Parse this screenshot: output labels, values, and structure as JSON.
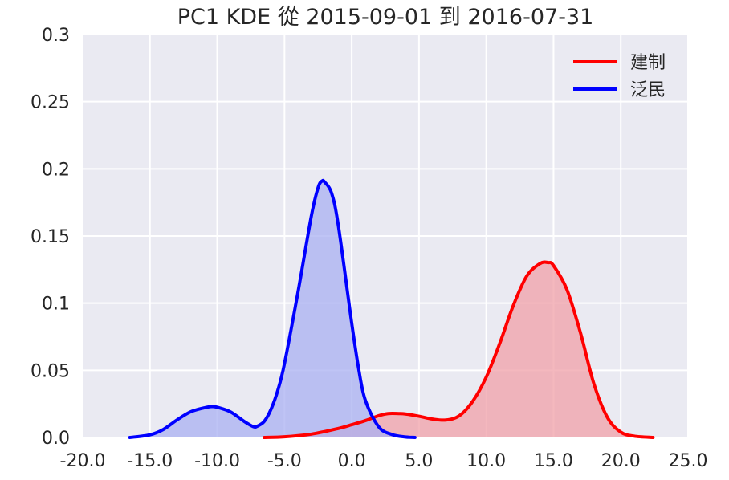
{
  "chart_data": {
    "type": "area",
    "title": "PC1 KDE 從 2015-09-01 到 2016-07-31",
    "xlabel": "",
    "ylabel": "",
    "xlim": [
      -20.0,
      25.0
    ],
    "ylim": [
      0.0,
      0.3
    ],
    "x_ticks": [
      "-20.0",
      "-15.0",
      "-10.0",
      "-5.0",
      "0.0",
      "5.0",
      "10.0",
      "15.0",
      "20.0",
      "25.0"
    ],
    "y_ticks": [
      "0.0",
      "0.05",
      "0.1",
      "0.15",
      "0.2",
      "0.25",
      "0.3"
    ],
    "grid": true,
    "legend_position": "top-right",
    "series": [
      {
        "name": "建制",
        "color": "#ff0000",
        "fill": "#f0a0a8",
        "x": [
          -6.5,
          -5.0,
          -3.0,
          -1.0,
          0.0,
          1.0,
          2.0,
          2.7,
          3.5,
          4.0,
          5.0,
          6.0,
          7.0,
          8.0,
          9.0,
          10.0,
          11.0,
          12.0,
          13.0,
          14.0,
          14.6,
          15.0,
          16.0,
          17.0,
          18.0,
          19.0,
          20.0,
          21.0,
          22.4
        ],
        "y": [
          0.0,
          0.0005,
          0.0025,
          0.0067,
          0.0095,
          0.0125,
          0.0162,
          0.0178,
          0.0178,
          0.0175,
          0.0158,
          0.0137,
          0.013,
          0.0162,
          0.027,
          0.045,
          0.07,
          0.098,
          0.12,
          0.1295,
          0.1302,
          0.128,
          0.11,
          0.078,
          0.04,
          0.015,
          0.004,
          0.001,
          0.0
        ]
      },
      {
        "name": "泛民",
        "color": "#0000ff",
        "fill": "#aab0f2",
        "x": [
          -16.5,
          -15.0,
          -14.0,
          -13.0,
          -12.0,
          -11.0,
          -10.4,
          -10.0,
          -9.0,
          -8.0,
          -7.3,
          -7.0,
          -6.5,
          -6.0,
          -5.5,
          -5.0,
          -4.0,
          -3.0,
          -2.5,
          -2.2,
          -2.0,
          -1.5,
          -1.0,
          0.0,
          0.5,
          1.0,
          2.0,
          3.0,
          4.0,
          4.7
        ],
        "y": [
          0.0,
          0.002,
          0.006,
          0.013,
          0.019,
          0.022,
          0.023,
          0.0225,
          0.019,
          0.012,
          0.008,
          0.0085,
          0.012,
          0.021,
          0.035,
          0.055,
          0.108,
          0.165,
          0.186,
          0.191,
          0.19,
          0.182,
          0.158,
          0.085,
          0.052,
          0.028,
          0.008,
          0.0022,
          0.0004,
          0.0
        ]
      }
    ]
  }
}
